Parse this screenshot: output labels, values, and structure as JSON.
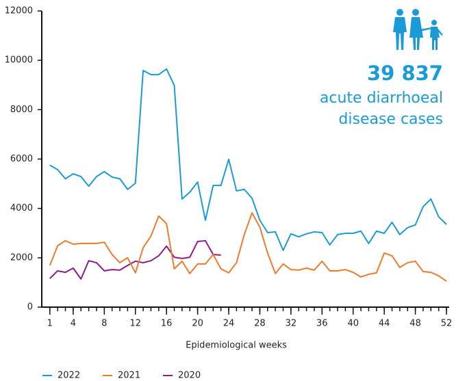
{
  "chart_data": {
    "type": "line",
    "xlabel": "Epidemiological weeks",
    "annotation": {
      "value": "39 837",
      "lines": [
        "acute diarrhoeal",
        "disease cases"
      ]
    },
    "x": [
      1,
      2,
      3,
      4,
      5,
      6,
      7,
      8,
      9,
      10,
      11,
      12,
      13,
      14,
      15,
      16,
      17,
      18,
      19,
      20,
      21,
      22,
      23,
      24,
      25,
      26,
      27,
      28,
      29,
      30,
      31,
      32,
      33,
      34,
      35,
      36,
      37,
      38,
      39,
      40,
      41,
      42,
      43,
      44,
      45,
      46,
      47,
      48,
      49,
      50,
      51,
      52
    ],
    "xlim": [
      0.4,
      52
    ],
    "xticks": [
      1,
      4,
      8,
      12,
      16,
      20,
      24,
      28,
      32,
      36,
      40,
      44,
      48,
      52
    ],
    "ylim": [
      0,
      12000
    ],
    "yticks": [
      0,
      2000,
      4000,
      6000,
      8000,
      10000,
      12000
    ],
    "grid": false,
    "series": [
      {
        "name": "2022",
        "color": "#1a9ad6",
        "values": [
          5750,
          5570,
          5200,
          5400,
          5290,
          4900,
          5290,
          5490,
          5270,
          5200,
          4770,
          5020,
          9590,
          9420,
          9420,
          9650,
          8980,
          4380,
          4660,
          5070,
          3520,
          4930,
          4930,
          5990,
          4710,
          4770,
          4410,
          3520,
          3020,
          3050,
          2300,
          2970,
          2850,
          2970,
          3050,
          3020,
          2520,
          2940,
          2990,
          2990,
          3080,
          2580,
          3080,
          2990,
          3440,
          2940,
          3220,
          3330,
          4070,
          4380,
          3660,
          3350
        ]
      },
      {
        "name": "2021",
        "color": "#f07a2a",
        "values": [
          1690,
          2490,
          2690,
          2550,
          2580,
          2580,
          2580,
          2630,
          2130,
          1800,
          2000,
          1390,
          2410,
          2880,
          3690,
          3380,
          1550,
          1860,
          1360,
          1750,
          1750,
          2130,
          1550,
          1390,
          1800,
          2940,
          3820,
          3240,
          2190,
          1360,
          1750,
          1520,
          1500,
          1580,
          1500,
          1860,
          1470,
          1470,
          1520,
          1410,
          1220,
          1330,
          1390,
          2190,
          2080,
          1610,
          1800,
          1860,
          1440,
          1410,
          1270,
          1050
        ]
      },
      {
        "name": "2020",
        "color": "#8b1a8b",
        "values": [
          1160,
          1470,
          1410,
          1580,
          1140,
          1880,
          1800,
          1470,
          1520,
          1500,
          1690,
          1860,
          1800,
          1880,
          2080,
          2470,
          2020,
          1970,
          2020,
          2660,
          2690,
          2130,
          2110,
          null,
          null,
          null,
          null,
          null,
          null,
          null,
          null,
          null,
          null,
          null,
          null,
          null,
          null,
          null,
          null,
          null,
          null,
          null,
          null,
          null,
          null,
          null,
          null,
          null,
          null,
          null,
          null,
          null
        ]
      }
    ]
  }
}
